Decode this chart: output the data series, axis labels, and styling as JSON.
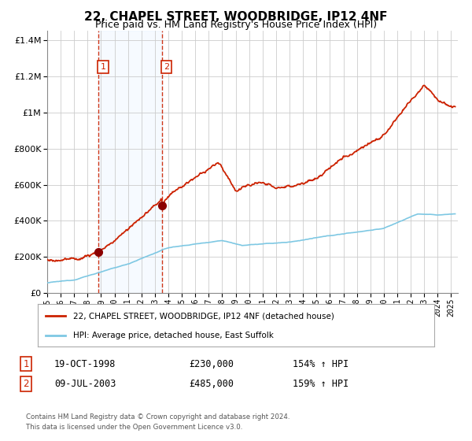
{
  "title": "22, CHAPEL STREET, WOODBRIDGE, IP12 4NF",
  "subtitle": "Price paid vs. HM Land Registry's House Price Index (HPI)",
  "title_fontsize": 11,
  "subtitle_fontsize": 9,
  "ylim": [
    0,
    1450000
  ],
  "xlim_start": 1995.0,
  "xlim_end": 2025.5,
  "background_color": "#ffffff",
  "plot_bg_color": "#ffffff",
  "grid_color": "#cccccc",
  "sale1_year": 1998.8,
  "sale1_price": 230000,
  "sale2_year": 2003.52,
  "sale2_price": 485000,
  "sale1_label": "1",
  "sale2_label": "2",
  "sale1_date": "19-OCT-1998",
  "sale1_price_str": "£230,000",
  "sale1_pct": "154% ↑ HPI",
  "sale2_date": "09-JUL-2003",
  "sale2_price_str": "£485,000",
  "sale2_pct": "159% ↑ HPI",
  "legend_line1": "22, CHAPEL STREET, WOODBRIDGE, IP12 4NF (detached house)",
  "legend_line2": "HPI: Average price, detached house, East Suffolk",
  "footer1": "Contains HM Land Registry data © Crown copyright and database right 2024.",
  "footer2": "This data is licensed under the Open Government Licence v3.0.",
  "hpi_color": "#7ec8e3",
  "price_color": "#cc2200",
  "shade_color": "#ddeeff",
  "marker_color": "#8b0000",
  "dashed_color": "#cc2200",
  "label_box_color": "#cc2200"
}
